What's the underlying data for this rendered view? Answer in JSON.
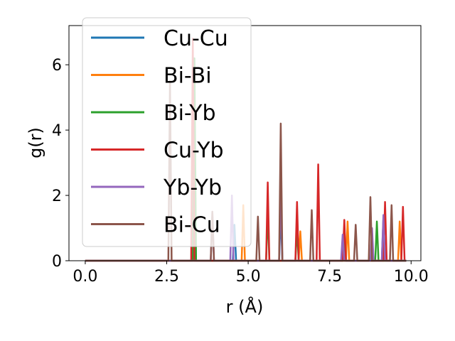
{
  "chart_data": {
    "type": "line",
    "title": "",
    "xlabel": "r (Å)",
    "ylabel": "g(r)",
    "xlim": [
      -0.5,
      10.3
    ],
    "ylim": [
      0,
      7.2
    ],
    "xticks": [
      0,
      2.5,
      5,
      7.5,
      10
    ],
    "xtick_labels": [
      "0.0",
      "2.5",
      "5.0",
      "7.5",
      "10.0"
    ],
    "yticks": [
      0,
      2,
      4,
      6
    ],
    "ytick_labels": [
      "0",
      "2",
      "4",
      "6"
    ],
    "grid": false,
    "legend_position": "top-left",
    "series": [
      {
        "name": "Cu-Cu",
        "color": "#1f77b4",
        "peaks": [
          [
            4.58,
            1.1
          ],
          [
            6.0,
            1.5
          ],
          [
            7.95,
            1.0
          ],
          [
            9.15,
            1.3
          ]
        ]
      },
      {
        "name": "Bi-Bi",
        "color": "#ff7f0e",
        "peaks": [
          [
            4.85,
            1.7
          ],
          [
            6.6,
            0.9
          ],
          [
            8.05,
            1.2
          ],
          [
            9.65,
            1.2
          ]
        ]
      },
      {
        "name": "Bi-Yb",
        "color": "#2ca02c",
        "peaks": [
          [
            3.35,
            6.2
          ],
          [
            5.6,
            1.5
          ],
          [
            6.5,
            1.0
          ],
          [
            7.95,
            0.9
          ],
          [
            8.95,
            1.2
          ]
        ]
      },
      {
        "name": "Cu-Yb",
        "color": "#d62728",
        "peaks": [
          [
            3.3,
            6.8
          ],
          [
            5.6,
            2.4
          ],
          [
            6.5,
            1.8
          ],
          [
            7.15,
            2.95
          ],
          [
            7.95,
            1.25
          ],
          [
            9.2,
            1.8
          ],
          [
            9.75,
            1.65
          ]
        ]
      },
      {
        "name": "Yb-Yb",
        "color": "#9467bd",
        "peaks": [
          [
            3.9,
            1.5
          ],
          [
            4.5,
            2.0
          ],
          [
            6.0,
            2.1
          ],
          [
            7.9,
            0.8
          ],
          [
            8.8,
            1.0
          ],
          [
            9.15,
            1.4
          ]
        ]
      },
      {
        "name": "Bi-Cu",
        "color": "#8c564b",
        "peaks": [
          [
            2.6,
            5.5
          ],
          [
            3.9,
            1.5
          ],
          [
            5.3,
            1.35
          ],
          [
            6.0,
            4.2
          ],
          [
            6.95,
            1.55
          ],
          [
            8.3,
            1.1
          ],
          [
            8.75,
            1.95
          ],
          [
            9.4,
            1.7
          ]
        ]
      }
    ]
  }
}
